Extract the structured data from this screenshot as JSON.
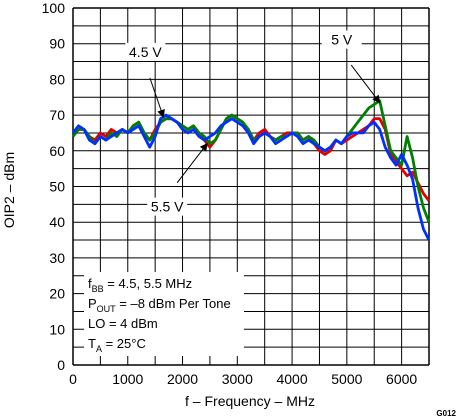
{
  "chart_data": {
    "type": "line",
    "xlabel": "f – Frequency – MHz",
    "ylabel": "OIP2 – dBm",
    "xlim": [
      0,
      6500
    ],
    "ylim": [
      0,
      100
    ],
    "xticks": [
      "0",
      "1000",
      "2000",
      "3000",
      "4000",
      "5000",
      "6000"
    ],
    "yticks": [
      "0",
      "10",
      "20",
      "30",
      "40",
      "50",
      "60",
      "70",
      "80",
      "90",
      "100"
    ],
    "grid": true,
    "figure_id": "G012",
    "conditions": {
      "line1_main": "f",
      "line1_sub": "BB",
      "line1_rest": " = 4.5, 5.5 MHz",
      "line2_main": "P",
      "line2_sub": "OUT",
      "line2_rest": " = –8 dBm Per Tone",
      "line3": "LO = 4 dBm",
      "line4_main": "T",
      "line4_sub": "A",
      "line4_rest": " = 25°C"
    },
    "annotations": [
      {
        "text": "4.5 V",
        "target_x": 1650,
        "target_y": 69.5
      },
      {
        "text": "5 V",
        "target_x": 5600,
        "target_y": 73.5
      },
      {
        "text": "5.5 V",
        "target_x": 2450,
        "target_y": 62
      }
    ],
    "series": [
      {
        "color": "#e00000",
        "x": [
          0,
          100,
          200,
          300,
          400,
          500,
          600,
          700,
          800,
          900,
          1000,
          1100,
          1200,
          1300,
          1400,
          1500,
          1600,
          1700,
          1800,
          1900,
          2000,
          2100,
          2200,
          2300,
          2400,
          2500,
          2600,
          2700,
          2800,
          2900,
          3000,
          3100,
          3200,
          3300,
          3400,
          3500,
          3600,
          3700,
          3800,
          3900,
          4000,
          4100,
          4200,
          4300,
          4400,
          4500,
          4600,
          4700,
          4800,
          4900,
          5000,
          5100,
          5200,
          5300,
          5400,
          5500,
          5600,
          5700,
          5800,
          5900,
          6000,
          6100,
          6200,
          6300,
          6400,
          6500
        ],
        "y": [
          65,
          66,
          66,
          64,
          63,
          65,
          64,
          66,
          65,
          66,
          65,
          67,
          68,
          65,
          63,
          66,
          68,
          69,
          69,
          68,
          67,
          66,
          67,
          65,
          63,
          61,
          63,
          66,
          69,
          70,
          69,
          68,
          66,
          63,
          65,
          66,
          64,
          63,
          64,
          65,
          65,
          65,
          63,
          64,
          62,
          60,
          59,
          60,
          63,
          62,
          63,
          64,
          65,
          66,
          67,
          69,
          69,
          66,
          59,
          57,
          55,
          53,
          54,
          51,
          48,
          46
        ]
      },
      {
        "color": "#008000",
        "x": [
          0,
          100,
          200,
          300,
          400,
          500,
          600,
          700,
          800,
          900,
          1000,
          1100,
          1200,
          1300,
          1400,
          1500,
          1600,
          1700,
          1800,
          1900,
          2000,
          2100,
          2200,
          2300,
          2400,
          2500,
          2600,
          2700,
          2800,
          2900,
          3000,
          3100,
          3200,
          3300,
          3400,
          3500,
          3600,
          3700,
          3800,
          3900,
          4000,
          4100,
          4200,
          4300,
          4400,
          4500,
          4600,
          4700,
          4800,
          4900,
          5000,
          5100,
          5200,
          5300,
          5400,
          5500,
          5600,
          5700,
          5800,
          5900,
          6000,
          6100,
          6200,
          6300,
          6400,
          6500
        ],
        "y": [
          64,
          66,
          66,
          64,
          62,
          64,
          63,
          65,
          64,
          66,
          65,
          67,
          68,
          65,
          63,
          65,
          68,
          69,
          69,
          68,
          67,
          66,
          67,
          65,
          64,
          62,
          63,
          66,
          69,
          70,
          69,
          68,
          66,
          63,
          64,
          65,
          64,
          63,
          64,
          64,
          65,
          65,
          63,
          64,
          63,
          61,
          60,
          61,
          63,
          62,
          64,
          66,
          68,
          70,
          72,
          73,
          74,
          67,
          60,
          58,
          56,
          64,
          58,
          50,
          44,
          40
        ]
      },
      {
        "color": "#0030ff",
        "x": [
          0,
          100,
          200,
          300,
          400,
          500,
          600,
          700,
          800,
          900,
          1000,
          1100,
          1200,
          1300,
          1400,
          1500,
          1600,
          1700,
          1800,
          1900,
          2000,
          2100,
          2200,
          2300,
          2400,
          2500,
          2600,
          2700,
          2800,
          2900,
          3000,
          3100,
          3200,
          3300,
          3400,
          3500,
          3600,
          3700,
          3800,
          3900,
          4000,
          4100,
          4200,
          4300,
          4400,
          4500,
          4600,
          4700,
          4800,
          4900,
          5000,
          5100,
          5200,
          5300,
          5400,
          5500,
          5600,
          5700,
          5800,
          5900,
          6000,
          6100,
          6200,
          6300,
          6400,
          6500
        ],
        "y": [
          65,
          67,
          66,
          63,
          62,
          64,
          63,
          64,
          65,
          66,
          65,
          66,
          67,
          64,
          61,
          64,
          69,
          70,
          69,
          68,
          66,
          65,
          66,
          64,
          63,
          64,
          65,
          67,
          68,
          69,
          68,
          67,
          65,
          62,
          64,
          65,
          64,
          62,
          63,
          64,
          65,
          64,
          62,
          63,
          62,
          61,
          60,
          61,
          63,
          62,
          64,
          65,
          65,
          65,
          67,
          68,
          66,
          61,
          58,
          56,
          59,
          56,
          52,
          44,
          38,
          35
        ]
      }
    ]
  }
}
